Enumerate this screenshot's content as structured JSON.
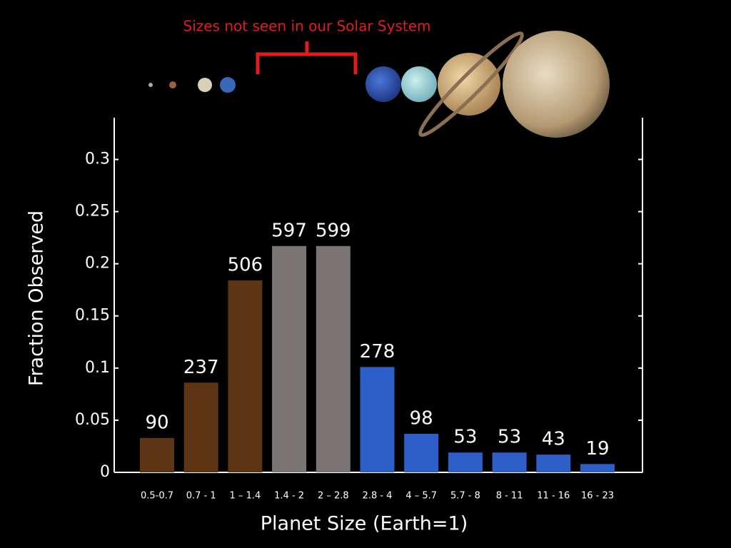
{
  "chart_data": {
    "type": "bar",
    "annotation": "Sizes not seen in our Solar System",
    "x_label": "Planet Size (Earth=1)",
    "y_label": "Fraction Observed",
    "categories": [
      "0.5-0.7",
      "0.7 - 1",
      "1 – 1.4",
      "1.4 - 2",
      "2 – 2.8",
      "2.8 - 4",
      "4 – 5.7",
      "5.7 - 8",
      "8 - 11",
      "11 - 16",
      "16 - 23"
    ],
    "values": [
      0.033,
      0.086,
      0.184,
      0.217,
      0.217,
      0.101,
      0.037,
      0.019,
      0.019,
      0.017,
      0.008
    ],
    "counts": [
      90,
      237,
      506,
      597,
      599,
      278,
      98,
      53,
      53,
      43,
      19
    ],
    "colors": [
      "#5e3514",
      "#5e3514",
      "#5e3514",
      "#7a7474",
      "#7a7474",
      "#2e5fc8",
      "#2e5fc8",
      "#2e5fc8",
      "#2e5fc8",
      "#2e5fc8",
      "#2e5fc8"
    ],
    "ylim": [
      0,
      0.34
    ],
    "yticks": [
      0,
      0.05,
      0.1,
      0.15,
      0.2,
      0.25,
      0.3
    ],
    "grid": false
  }
}
